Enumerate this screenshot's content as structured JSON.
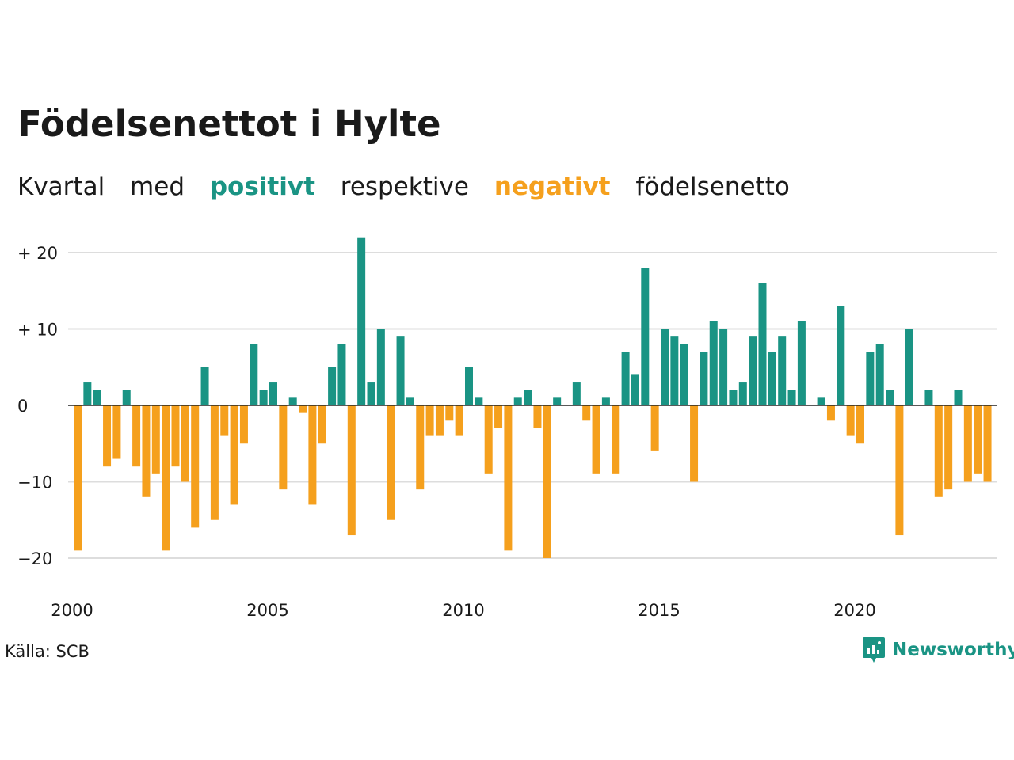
{
  "title": "Födelsenettot i Hylte",
  "subtitle": {
    "word1": "Kvartal",
    "word2": "med",
    "positive_word": "positivt",
    "word4": "respektive",
    "negative_word": "negativt",
    "word6": "födelsenetto"
  },
  "source": "Källa: SCB",
  "logo": {
    "text": "Newsworthy",
    "icon": "newsworthy-logo-icon"
  },
  "colors": {
    "positive": "#1a9484",
    "negative": "#f5a01d",
    "grid": "#dddddd",
    "zero_line": "#222222",
    "text": "#1a1a1a"
  },
  "chart_data": {
    "type": "bar",
    "title": "Födelsenettot i Hylte",
    "subtitle": "Kvartal med positivt respektive negativt födelsenetto",
    "xlabel": "",
    "ylabel": "",
    "ylim": [
      -24,
      24
    ],
    "y_ticks": [
      {
        "value": 20,
        "label": "+ 20"
      },
      {
        "value": 10,
        "label": "+ 10"
      },
      {
        "value": 0,
        "label": "0"
      },
      {
        "value": -10,
        "label": "−10"
      },
      {
        "value": -20,
        "label": "−20"
      }
    ],
    "x_ticks": [
      {
        "value": 2000,
        "label": "2000"
      },
      {
        "value": 2005,
        "label": "2005"
      },
      {
        "value": 2010,
        "label": "2010"
      },
      {
        "value": 2015,
        "label": "2015"
      },
      {
        "value": 2020,
        "label": "2020"
      }
    ],
    "grid": true,
    "first_quarter": "2000Q1",
    "values": [
      -19,
      3,
      2,
      -8,
      -7,
      2,
      -8,
      -12,
      -9,
      -19,
      -8,
      -10,
      -16,
      5,
      -15,
      -4,
      -13,
      -5,
      8,
      2,
      3,
      -11,
      1,
      -1,
      -13,
      -5,
      5,
      8,
      -17,
      22,
      3,
      10,
      -15,
      9,
      1,
      -11,
      -4,
      -4,
      -2,
      -4,
      5,
      1,
      -9,
      -3,
      -19,
      1,
      2,
      -3,
      -20,
      1,
      0,
      3,
      -2,
      -9,
      1,
      -9,
      7,
      4,
      18,
      -6,
      10,
      9,
      8,
      -10,
      7,
      11,
      10,
      2,
      3,
      9,
      16,
      7,
      9,
      2,
      11,
      0,
      1,
      -2,
      13,
      -4,
      -5,
      7,
      8,
      2,
      -17,
      10,
      0,
      2,
      -12,
      -11,
      2,
      -10,
      -9,
      -10
    ]
  }
}
